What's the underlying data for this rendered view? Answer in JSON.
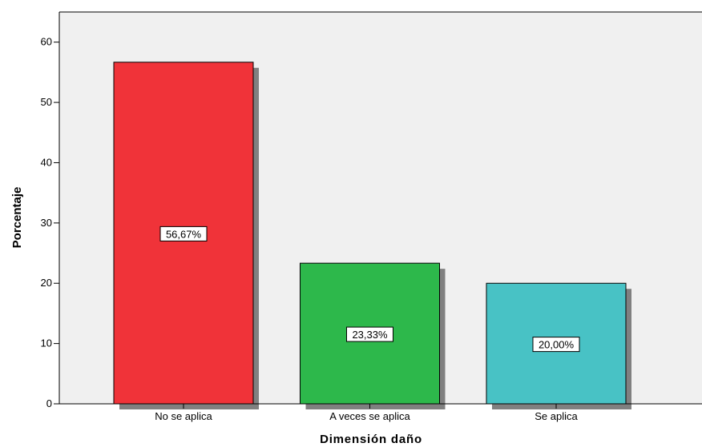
{
  "chart_data": {
    "type": "bar",
    "categories": [
      "No se aplica",
      "A veces se aplica",
      "Se aplica"
    ],
    "values": [
      56.67,
      23.33,
      20.0
    ],
    "data_labels": [
      "56,67%",
      "23,33%",
      "20,00%"
    ],
    "xlabel": "Dimensión daño",
    "ylabel": "Porcentaje",
    "ylim": [
      0,
      65
    ],
    "yticks": [
      0,
      10,
      20,
      30,
      40,
      50,
      60
    ],
    "grid": false,
    "legend": "none",
    "colors": {
      "bars": [
        "#f03339",
        "#2db84b",
        "#48c2c5"
      ],
      "plot_background": "#f0f0f0",
      "shadow": "#808080",
      "axis": "#000000"
    }
  }
}
